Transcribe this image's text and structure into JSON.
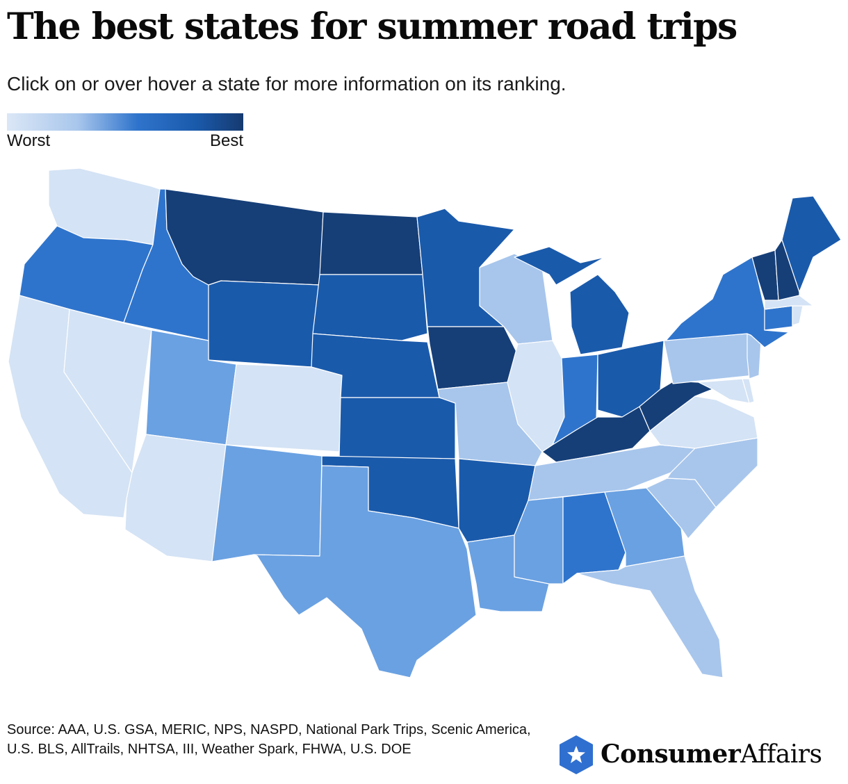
{
  "header": {
    "title": "The best states for summer road trips",
    "subtitle": "Click on or over hover a state for more information on its ranking."
  },
  "legend": {
    "low_label": "Worst",
    "high_label": "Best",
    "colors": [
      "#dbe7f6",
      "#a8c6ec",
      "#5b96de",
      "#1f64c0",
      "#163a70"
    ]
  },
  "colors": {
    "level_1": "#d4e3f5",
    "level_2": "#a8c6ec",
    "level_3": "#6aa1e2",
    "level_4": "#2f74cc",
    "level_5": "#1a5aab",
    "level_6": "#163f78",
    "stroke": "#ffffff"
  },
  "map_data": {
    "type": "choropleth",
    "scale": "Worst to Best",
    "states": [
      {
        "state": "Washington",
        "level": 1
      },
      {
        "state": "Oregon",
        "level": 4
      },
      {
        "state": "California",
        "level": 1
      },
      {
        "state": "Nevada",
        "level": 1
      },
      {
        "state": "Idaho",
        "level": 4
      },
      {
        "state": "Montana",
        "level": 6
      },
      {
        "state": "Wyoming",
        "level": 5
      },
      {
        "state": "Utah",
        "level": 3
      },
      {
        "state": "Arizona",
        "level": 1
      },
      {
        "state": "Colorado",
        "level": 1
      },
      {
        "state": "New Mexico",
        "level": 3
      },
      {
        "state": "North Dakota",
        "level": 6
      },
      {
        "state": "South Dakota",
        "level": 5
      },
      {
        "state": "Nebraska",
        "level": 5
      },
      {
        "state": "Kansas",
        "level": 5
      },
      {
        "state": "Oklahoma",
        "level": 5
      },
      {
        "state": "Texas",
        "level": 3
      },
      {
        "state": "Minnesota",
        "level": 5
      },
      {
        "state": "Iowa",
        "level": 6
      },
      {
        "state": "Missouri",
        "level": 2
      },
      {
        "state": "Arkansas",
        "level": 5
      },
      {
        "state": "Louisiana",
        "level": 3
      },
      {
        "state": "Wisconsin",
        "level": 2
      },
      {
        "state": "Illinois",
        "level": 1
      },
      {
        "state": "Michigan",
        "level": 5
      },
      {
        "state": "Indiana",
        "level": 4
      },
      {
        "state": "Ohio",
        "level": 5
      },
      {
        "state": "Kentucky",
        "level": 6
      },
      {
        "state": "Tennessee",
        "level": 2
      },
      {
        "state": "Mississippi",
        "level": 3
      },
      {
        "state": "Alabama",
        "level": 4
      },
      {
        "state": "Georgia",
        "level": 3
      },
      {
        "state": "Florida",
        "level": 2
      },
      {
        "state": "South Carolina",
        "level": 2
      },
      {
        "state": "North Carolina",
        "level": 2
      },
      {
        "state": "Virginia",
        "level": 1
      },
      {
        "state": "West Virginia",
        "level": 6
      },
      {
        "state": "Maryland",
        "level": 1
      },
      {
        "state": "Delaware",
        "level": 1
      },
      {
        "state": "Pennsylvania",
        "level": 2
      },
      {
        "state": "New Jersey",
        "level": 2
      },
      {
        "state": "New York",
        "level": 4
      },
      {
        "state": "Connecticut",
        "level": 4
      },
      {
        "state": "Rhode Island",
        "level": 1
      },
      {
        "state": "Massachusetts",
        "level": 1
      },
      {
        "state": "Vermont",
        "level": 6
      },
      {
        "state": "New Hampshire",
        "level": 6
      },
      {
        "state": "Maine",
        "level": 5
      }
    ]
  },
  "source": {
    "text": "Source: AAA, U.S. GSA, MERIC, NPS, NASPD, National Park Trips, Scenic America, U.S. BLS, AllTrails, NHTSA, III, Weather Spark, FHWA, U.S. DOE"
  },
  "logo": {
    "brand_bold": "Consumer",
    "brand_regular": "Affairs",
    "icon": "star-hexagon-icon",
    "color": "#2f6fd0"
  }
}
